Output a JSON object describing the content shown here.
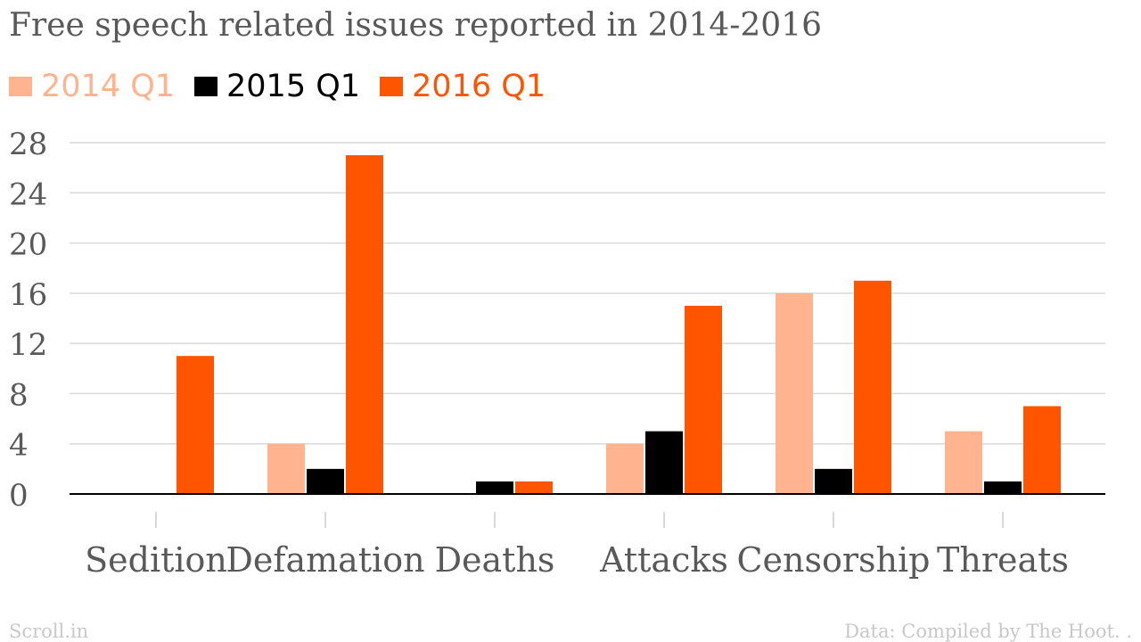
{
  "title": "Free speech related issues reported in 2014-2016",
  "footer": {
    "source_brand": "Scroll.in",
    "data_note": "Data: Compiled by The Hoot. ."
  },
  "colors": {
    "s2014": "#ffb38f",
    "s2015": "#000000",
    "s2016": "#ff5500",
    "grid": "#d9d9d9",
    "axis": "#000000",
    "text": "#595959"
  },
  "chart_data": {
    "type": "bar",
    "title": "Free speech related issues reported in 2014-2016",
    "xlabel": "",
    "ylabel": "",
    "categories": [
      "Sedition",
      "Defamation",
      "Deaths",
      "Attacks",
      "Censorship",
      "Threats"
    ],
    "series": [
      {
        "name": "2014 Q1",
        "values": [
          0,
          4,
          0,
          4,
          16,
          5
        ]
      },
      {
        "name": "2015 Q1",
        "values": [
          0,
          2,
          1,
          5,
          2,
          1
        ]
      },
      {
        "name": "2016 Q1",
        "values": [
          11,
          27,
          1,
          15,
          17,
          7
        ]
      }
    ],
    "ylim": [
      0,
      28
    ],
    "yticks": [
      0,
      4,
      8,
      12,
      16,
      20,
      24,
      28
    ],
    "grid": true,
    "legend_position": "top-left"
  }
}
